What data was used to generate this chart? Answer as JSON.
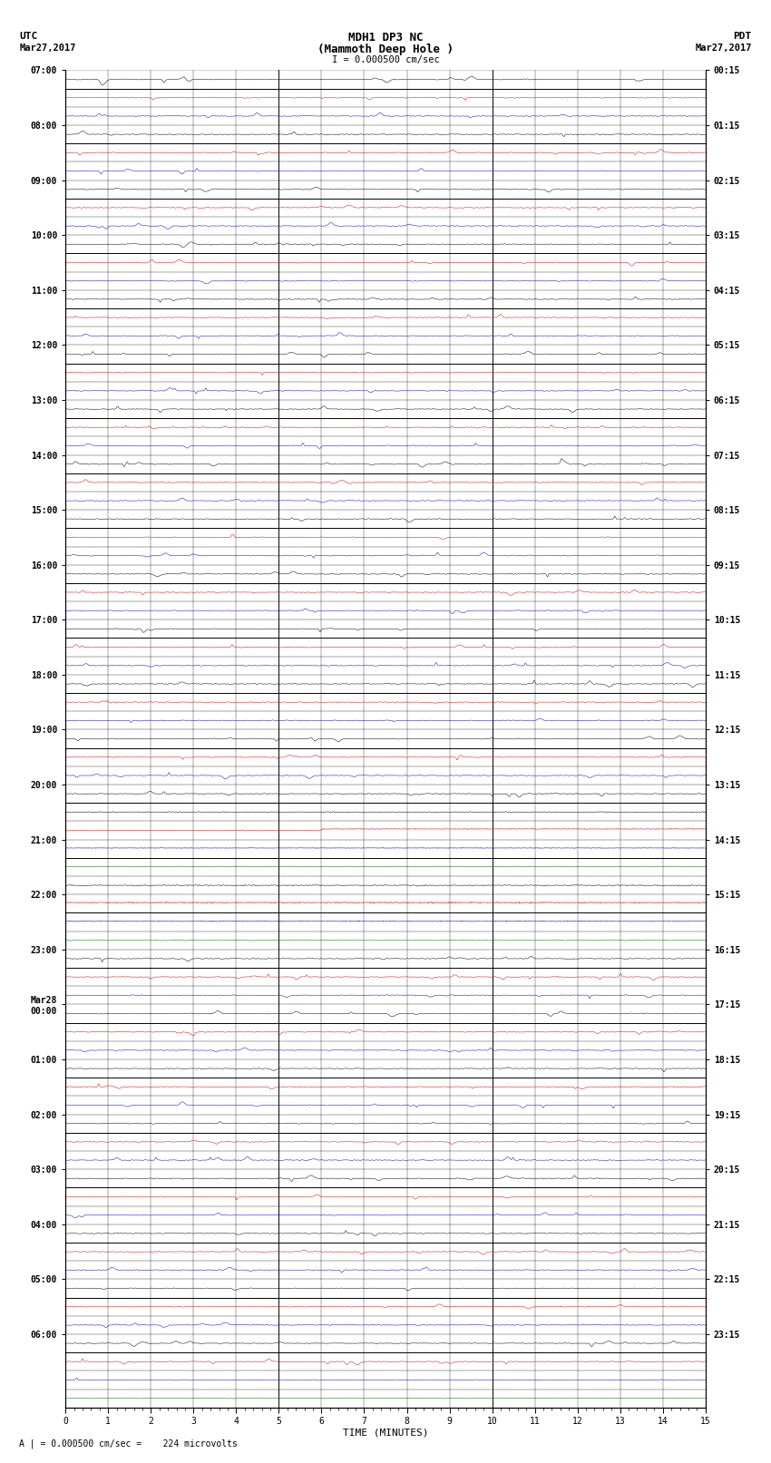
{
  "title_line1": "MDH1 DP3 NC",
  "title_line2": "(Mammoth Deep Hole )",
  "scale_text": "I = 0.000500 cm/sec",
  "left_label_top": "UTC",
  "left_label_date": "Mar27,2017",
  "right_label_top": "PDT",
  "right_label_date": "Mar27,2017",
  "bottom_note": "A | = 0.000500 cm/sec =    224 microvolts",
  "xlabel": "TIME (MINUTES)",
  "xmin": 0,
  "xmax": 15,
  "bg_color": "#ffffff",
  "trace_color_black": "#000000",
  "trace_color_red": "#dd0000",
  "trace_color_blue": "#0000dd",
  "trace_color_green": "#006600",
  "grid_color": "#000000",
  "fig_width": 8.5,
  "fig_height": 16.13,
  "utc_labels": [
    "07:00",
    "",
    "",
    "08:00",
    "",
    "",
    "09:00",
    "",
    "",
    "10:00",
    "",
    "",
    "11:00",
    "",
    "",
    "12:00",
    "",
    "",
    "13:00",
    "",
    "",
    "14:00",
    "",
    "",
    "15:00",
    "",
    "",
    "16:00",
    "",
    "",
    "17:00",
    "",
    "",
    "18:00",
    "",
    "",
    "19:00",
    "",
    "",
    "20:00",
    "",
    "",
    "21:00",
    "",
    "",
    "22:00",
    "",
    "",
    "23:00",
    "",
    "",
    "Mar28\n00:00",
    "",
    "",
    "01:00",
    "",
    "",
    "02:00",
    "",
    "",
    "03:00",
    "",
    "",
    "04:00",
    "",
    "",
    "05:00",
    "",
    "",
    "06:00",
    "",
    "",
    ""
  ],
  "pdt_labels": [
    "00:15",
    "",
    "",
    "01:15",
    "",
    "",
    "02:15",
    "",
    "",
    "03:15",
    "",
    "",
    "04:15",
    "",
    "",
    "05:15",
    "",
    "",
    "06:15",
    "",
    "",
    "07:15",
    "",
    "",
    "08:15",
    "",
    "",
    "09:15",
    "",
    "",
    "10:15",
    "",
    "",
    "11:15",
    "",
    "",
    "12:15",
    "",
    "",
    "13:15",
    "",
    "",
    "14:15",
    "",
    "",
    "15:15",
    "",
    "",
    "16:15",
    "",
    "",
    "17:15",
    "",
    "",
    "18:15",
    "",
    "",
    "19:15",
    "",
    "",
    "20:15",
    "",
    "",
    "21:15",
    "",
    "",
    "22:15",
    "",
    "",
    "23:15",
    "",
    "",
    ""
  ]
}
